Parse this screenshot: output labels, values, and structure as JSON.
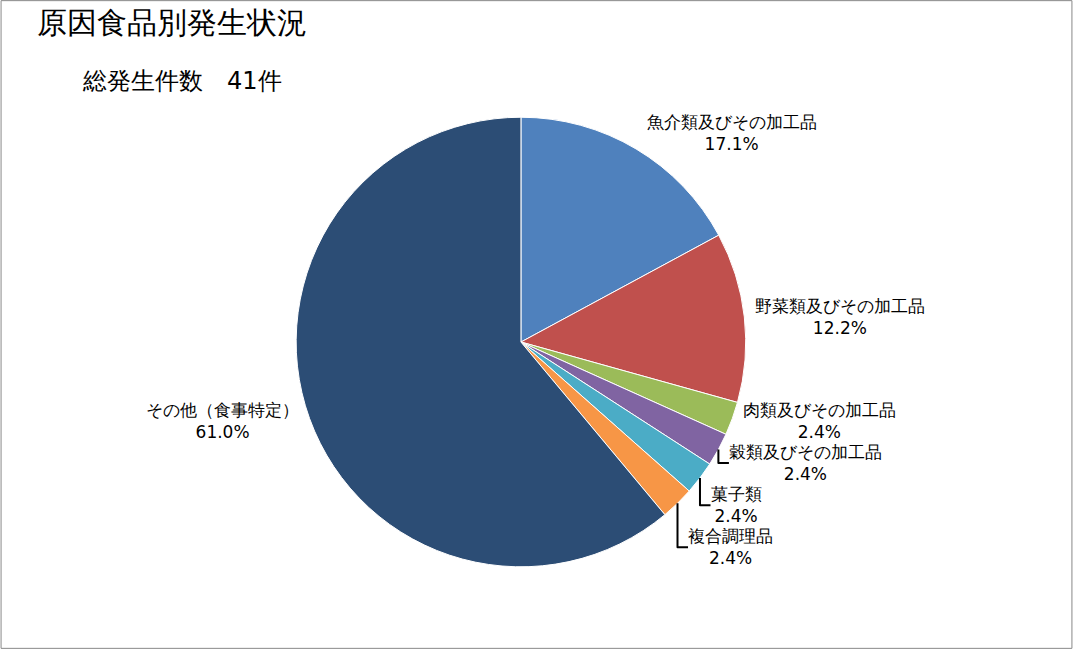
{
  "chart_data": {
    "type": "pie",
    "title": "原因食品別発生状況",
    "subtitle": "総発生件数　41件",
    "categories": [
      "魚介類及びその加工品",
      "野菜類及びその加工品",
      "肉類及びその加工品",
      "穀類及びその加工品",
      "菓子類",
      "複合調理品",
      "その他（食事特定）"
    ],
    "values": [
      17.1,
      12.2,
      2.4,
      2.4,
      2.4,
      2.4,
      61.0
    ],
    "value_labels": [
      "17.1%",
      "12.2%",
      "2.4%",
      "2.4%",
      "2.4%",
      "2.4%",
      "61.0%"
    ],
    "colors": [
      "#4f81bd",
      "#c0504d",
      "#9bbb59",
      "#8064a2",
      "#4bacc6",
      "#f79646",
      "#2c4d75"
    ],
    "data_labels": true
  }
}
